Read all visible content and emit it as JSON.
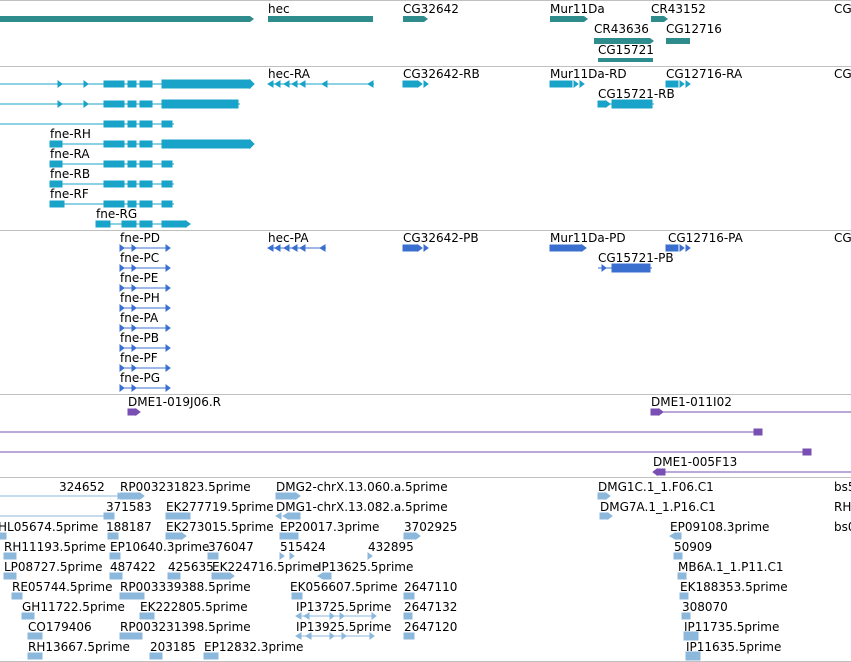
{
  "colors": {
    "gene": "#2f8c8c",
    "transcript": "#1aa3c9",
    "protein": "#3a6fd0",
    "clone": "#7a4fb3",
    "est": "#8cb8dc",
    "separator": "#c0c0c0"
  },
  "tracks": [
    {
      "id": "genes",
      "labels": [
        "hec",
        "CG32642",
        "Mur11Da",
        "CR43152",
        "CG",
        "CR43636",
        "CG12716",
        "CG15721"
      ]
    },
    {
      "id": "transcripts",
      "labels": [
        "hec-RA",
        "CG32642-RB",
        "Mur11Da-RD",
        "CG12716-RA",
        "CG",
        "CG15721-RB",
        "fne-RH",
        "fne-RA",
        "fne-RB",
        "fne-RF",
        "fne-RG"
      ]
    },
    {
      "id": "proteins",
      "labels": [
        "fne-PD",
        "hec-PA",
        "CG32642-PB",
        "Mur11Da-PD",
        "CG12716-PA",
        "CG",
        "CG15721-PB",
        "fne-PC",
        "fne-PE",
        "fne-PH",
        "fne-PA",
        "fne-PB",
        "fne-PF",
        "fne-PG"
      ]
    },
    {
      "id": "clones",
      "labels": [
        "DME1-019J06.R",
        "DME1-011I02",
        "DME1-005F13"
      ]
    },
    {
      "id": "ests",
      "labels": [
        "324652",
        "RP003231823.5prime",
        "DMG2-chrX.13.060.a.5prime",
        "DMG1C.1_1.F06.C1",
        "bs5",
        "371583",
        "EK277719.5prime",
        "DMG1-chrX.13.082.a.5prime",
        "DMG7A.1_1.P16.C1",
        "RH",
        "HL05674.5prime",
        "188187",
        "EK273015.5prime",
        "EP20017.3prime",
        "3702925",
        "EP09108.3prime",
        "bs0",
        "RH11193.5prime",
        "EP10640.3prime",
        "376047",
        "515424",
        "432895",
        "50909",
        "LP08727.5prime",
        "487422",
        "425635",
        "EK224716.5prime",
        "IP13625.5prime",
        "MB6A.1_1.P11.C1",
        "RE05744.5prime",
        "RP003339388.5prime",
        "EK056607.5prime",
        "2647110",
        "EK188353.5prime",
        "GH11722.5prime",
        "EK222805.5prime",
        "IP13725.5prime",
        "2647132",
        "308070",
        "CO179406",
        "RP003231398.5prime",
        "IP13925.5prime",
        "2647120",
        "IP11735.5prime",
        "RH13667.5prime",
        "203185",
        "EP12832.3prime",
        "IP11635.5prime"
      ]
    }
  ]
}
